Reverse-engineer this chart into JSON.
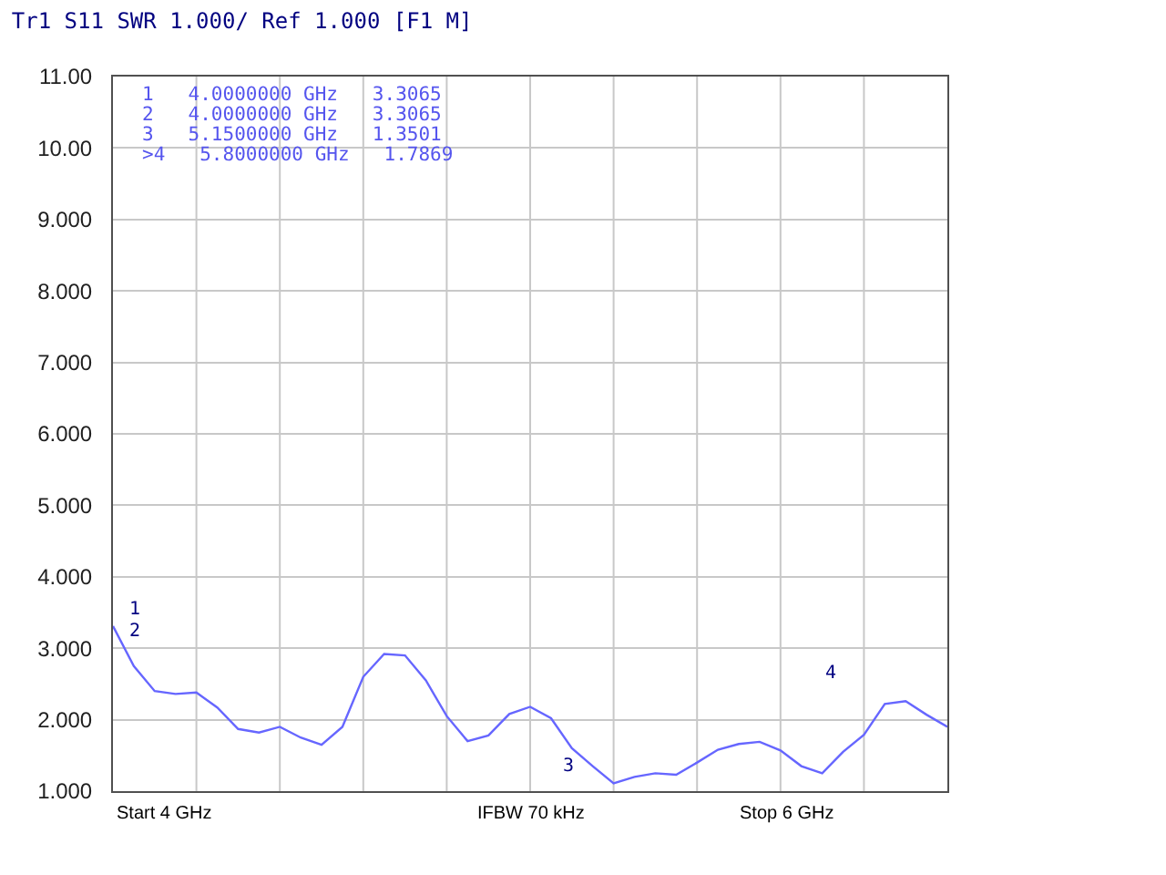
{
  "chart_data": {
    "type": "line",
    "title": "Tr1 S11 SWR 1.000/ Ref 1.000 [F1 M]",
    "categories": [
      null,
      null,
      null,
      null,
      null,
      null,
      null,
      null,
      null,
      null,
      null,
      null,
      null,
      null,
      null,
      null,
      null,
      null,
      null,
      null,
      null,
      null,
      null,
      null,
      null,
      null,
      null,
      null,
      null,
      null,
      null,
      null,
      null,
      null,
      null,
      null,
      null,
      null,
      null,
      null,
      null
    ],
    "series": [
      {
        "color": "#6666ff",
        "values": [
          3.31,
          2.75,
          2.4,
          2.36,
          2.38,
          2.17,
          1.87,
          1.82,
          1.9,
          1.75,
          1.65,
          1.9,
          2.6,
          2.92,
          2.9,
          2.55,
          2.05,
          1.7,
          1.78,
          2.08,
          2.18,
          2.02,
          1.6,
          1.35,
          1.11,
          1.2,
          1.25,
          1.23,
          1.4,
          1.58,
          1.66,
          1.69,
          1.57,
          1.35,
          1.25,
          1.55,
          1.79,
          2.22,
          2.26,
          2.07,
          1.9
        ]
      }
    ],
    "ylim": [
      1,
      11
    ],
    "yticks": [
      {
        "value": 1,
        "label": "1.000"
      },
      {
        "value": 2,
        "label": "2.000"
      },
      {
        "value": 3,
        "label": "3.000"
      },
      {
        "value": 4,
        "label": "4.000"
      },
      {
        "value": 5,
        "label": "5.000"
      },
      {
        "value": 6,
        "label": "6.000"
      },
      {
        "value": 7,
        "label": "7.000"
      },
      {
        "value": 8,
        "label": "8.000"
      },
      {
        "value": 9,
        "label": "9.000"
      },
      {
        "value": 10,
        "label": "10.00"
      },
      {
        "value": 11,
        "label": "11.00"
      }
    ],
    "tick_labels": "y",
    "grid": true,
    "marker": "none",
    "line_style": "solid",
    "annotations": [
      "1   4.0000000 GHz   3.3065",
      "2   4.0000000 GHz   3.3065",
      "3   5.1500000 GHz   1.3501",
      ">4   5.8000000 GHz   1.7869",
      "1",
      "2",
      "3",
      "4",
      "Start 4 GHz",
      "IFBW 70 kHz",
      "Stop 6 GHz"
    ]
  }
}
